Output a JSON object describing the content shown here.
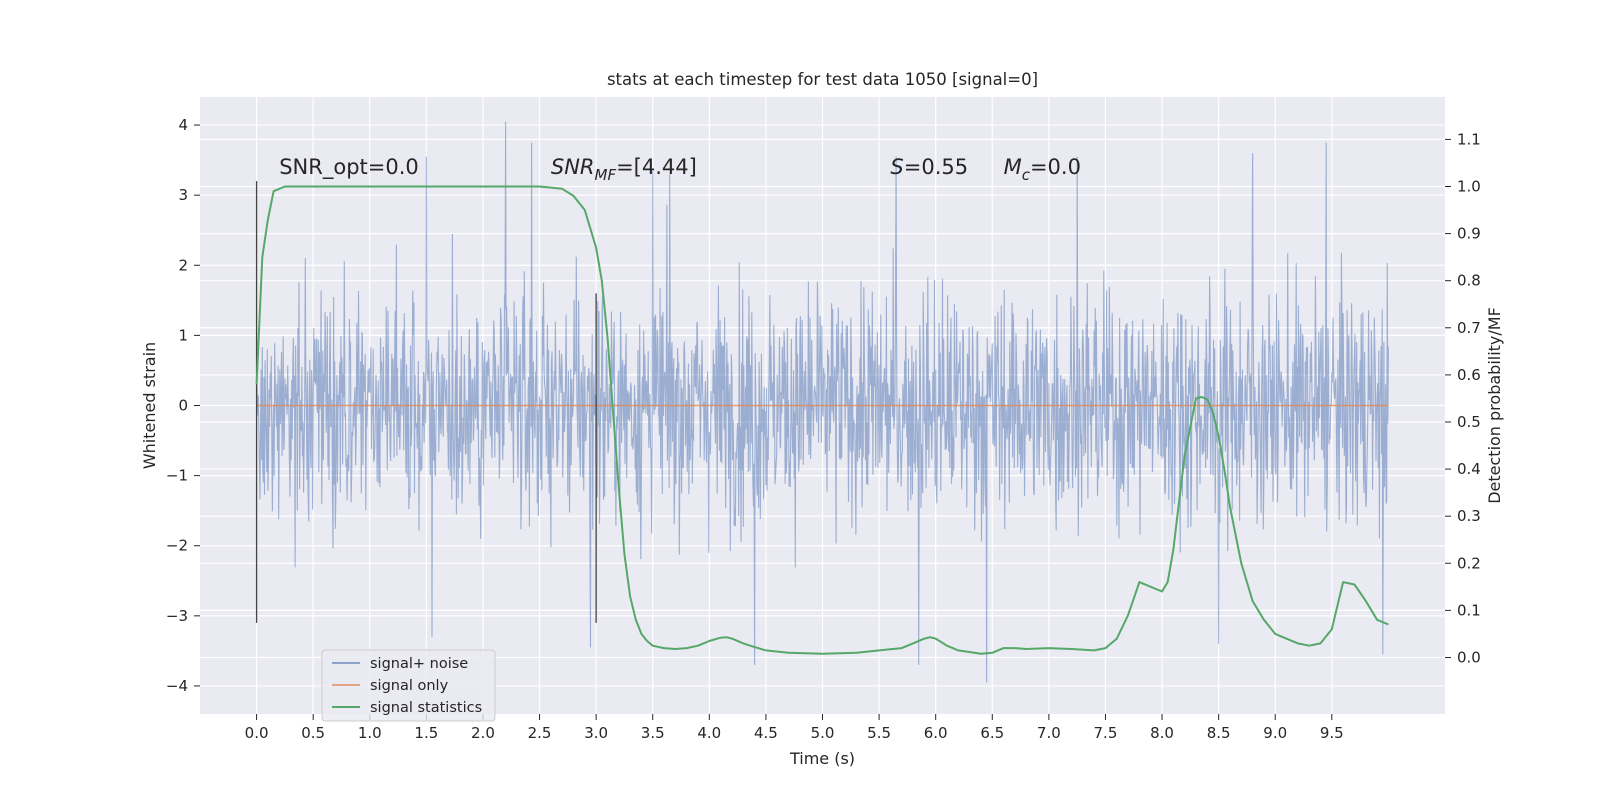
{
  "chart_data": {
    "type": "line",
    "title": "stats at each timestep for test data 1050 [signal=0]",
    "xlabel": "Time (s)",
    "ylabel": "Whitened strain",
    "y2label": "Detection probability/MF",
    "xlim": [
      -0.5,
      10.5
    ],
    "ylim": [
      -4.4,
      4.4
    ],
    "y2lim": [
      -0.12,
      1.19
    ],
    "x_ticks": [
      "0.0",
      "0.5",
      "1.0",
      "1.5",
      "2.0",
      "2.5",
      "3.0",
      "3.5",
      "4.0",
      "4.5",
      "5.0",
      "5.5",
      "6.0",
      "6.5",
      "7.0",
      "7.5",
      "8.0",
      "8.5",
      "9.0",
      "9.5"
    ],
    "y_ticks": [
      "4",
      "3",
      "2",
      "1",
      "0",
      "−1",
      "−2",
      "−3",
      "−4"
    ],
    "y2_ticks": [
      "1.1",
      "1.0",
      "0.9",
      "0.8",
      "0.7",
      "0.6",
      "0.5",
      "0.4",
      "0.3",
      "0.2",
      "0.1",
      "0.0"
    ],
    "grid": true,
    "legend_position": "lower-left",
    "colors": {
      "signal_noise": "#4c72b0",
      "signal_only": "#dd8452",
      "statistics": "#55a868",
      "background": "#eaeaf2",
      "vlines": "#444444"
    },
    "series": [
      {
        "name": "signal+ noise",
        "axis": "left",
        "style": "dense noise, amplitude about 2 sigma, extremes near -3.9 and 4.05",
        "x_range": [
          0.0,
          10.0
        ],
        "peaks": [
          {
            "x": 2.2,
            "y": 4.05
          },
          {
            "x": 2.43,
            "y": 3.75
          },
          {
            "x": 1.5,
            "y": 3.55
          },
          {
            "x": 9.45,
            "y": 3.75
          },
          {
            "x": 8.8,
            "y": 3.6
          },
          {
            "x": 7.25,
            "y": 3.55
          },
          {
            "x": 5.65,
            "y": 3.55
          },
          {
            "x": 3.5,
            "y": 3.35
          },
          {
            "x": 3.65,
            "y": 3.3
          },
          {
            "x": 6.45,
            "y": -3.95
          },
          {
            "x": 4.4,
            "y": -3.7
          },
          {
            "x": 5.85,
            "y": -3.7
          },
          {
            "x": 8.5,
            "y": -3.4
          },
          {
            "x": 9.95,
            "y": -3.55
          },
          {
            "x": 2.95,
            "y": -3.45
          },
          {
            "x": 1.55,
            "y": -3.3
          }
        ]
      },
      {
        "name": "signal only",
        "axis": "left",
        "x": [
          0.0,
          10.0
        ],
        "values": [
          0.0,
          0.0
        ]
      },
      {
        "name": "signal statistics",
        "axis": "right",
        "x": [
          0.0,
          0.05,
          0.1,
          0.15,
          0.25,
          0.5,
          1.0,
          1.5,
          2.0,
          2.5,
          2.7,
          2.8,
          2.9,
          3.0,
          3.05,
          3.1,
          3.15,
          3.2,
          3.25,
          3.3,
          3.35,
          3.4,
          3.45,
          3.5,
          3.6,
          3.7,
          3.8,
          3.9,
          4.0,
          4.1,
          4.15,
          4.2,
          4.3,
          4.4,
          4.5,
          4.7,
          5.0,
          5.3,
          5.5,
          5.7,
          5.8,
          5.9,
          5.95,
          6.0,
          6.1,
          6.2,
          6.4,
          6.5,
          6.6,
          6.7,
          6.8,
          7.0,
          7.2,
          7.4,
          7.5,
          7.6,
          7.7,
          7.8,
          7.9,
          8.0,
          8.05,
          8.1,
          8.15,
          8.2,
          8.3,
          8.35,
          8.4,
          8.45,
          8.5,
          8.55,
          8.6,
          8.7,
          8.8,
          8.9,
          9.0,
          9.2,
          9.3,
          9.4,
          9.5,
          9.6,
          9.7,
          9.8,
          9.9,
          10.0
        ],
        "values": [
          0.58,
          0.85,
          0.93,
          0.99,
          1.0,
          1.0,
          1.0,
          1.0,
          1.0,
          1.0,
          0.995,
          0.98,
          0.95,
          0.87,
          0.8,
          0.68,
          0.52,
          0.36,
          0.22,
          0.13,
          0.08,
          0.05,
          0.035,
          0.025,
          0.02,
          0.018,
          0.02,
          0.025,
          0.035,
          0.042,
          0.043,
          0.04,
          0.03,
          0.022,
          0.015,
          0.01,
          0.008,
          0.01,
          0.015,
          0.02,
          0.03,
          0.04,
          0.043,
          0.04,
          0.025,
          0.015,
          0.008,
          0.01,
          0.02,
          0.02,
          0.018,
          0.02,
          0.018,
          0.015,
          0.02,
          0.04,
          0.09,
          0.16,
          0.15,
          0.14,
          0.16,
          0.23,
          0.33,
          0.43,
          0.55,
          0.553,
          0.548,
          0.52,
          0.47,
          0.4,
          0.32,
          0.2,
          0.12,
          0.08,
          0.05,
          0.03,
          0.025,
          0.03,
          0.06,
          0.16,
          0.155,
          0.12,
          0.08,
          0.07
        ]
      }
    ],
    "vlines": [
      {
        "x": 0.0,
        "y_from": -3.1,
        "y_to": 3.2
      },
      {
        "x": 3.0,
        "y_from": -3.1,
        "y_to": 1.6
      }
    ],
    "annotations": [
      {
        "id": "snr_opt",
        "x": 0.2,
        "y": 3.3,
        "text": "SNR_opt=0.0"
      },
      {
        "id": "snr_mf",
        "x": 2.6,
        "y": 3.3,
        "base": "SNR",
        "sub": "MF",
        "rest": "=[4.44]"
      },
      {
        "id": "s",
        "x": 5.6,
        "y": 3.3,
        "base": "S",
        "rest": "=0.55"
      },
      {
        "id": "mc",
        "x": 6.6,
        "y": 3.3,
        "base": "M",
        "sub": "c",
        "rest": "=0.0"
      }
    ]
  }
}
